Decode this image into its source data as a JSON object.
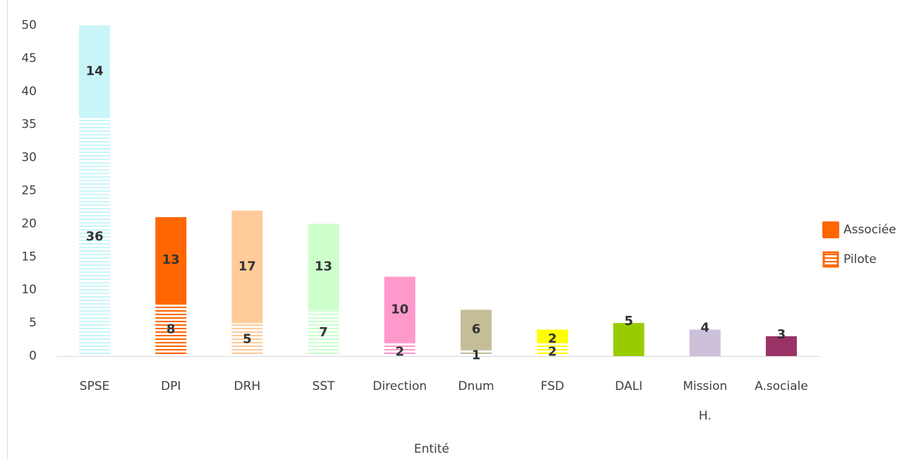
{
  "chart_data": {
    "type": "bar",
    "stacked": true,
    "x_label": "Entité",
    "categories": [
      "SPSE",
      "DPI",
      "DRH",
      "SST",
      "Direction",
      "Dnum",
      "FSD",
      "DALI",
      "Mission H.",
      "A.sociale"
    ],
    "colors": [
      "#c9f5f9",
      "#ff6600",
      "#ffcc99",
      "#ccffcc",
      "#ff99cc",
      "#c4bd97",
      "#ffff00",
      "#99cc00",
      "#ccc0da",
      "#993366"
    ],
    "series": [
      {
        "name": "Pilote",
        "color": "#ff6600",
        "pattern": "stripes",
        "values": [
          36,
          8,
          5,
          7,
          2,
          1,
          2,
          null,
          null,
          null
        ]
      },
      {
        "name": "Associée",
        "color": "#ff6600",
        "pattern": "solid",
        "values": [
          14,
          13,
          17,
          13,
          10,
          6,
          2,
          5,
          4,
          3
        ]
      }
    ],
    "ylim": [
      0,
      50
    ],
    "yticks": [
      0,
      5,
      10,
      15,
      20,
      25,
      30,
      35,
      40,
      45,
      50
    ],
    "legend": "right"
  }
}
